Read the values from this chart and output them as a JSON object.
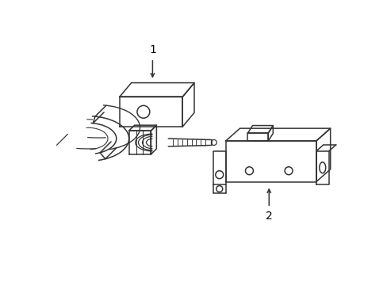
{
  "background_color": "#ffffff",
  "line_color": "#333333",
  "line_width": 1.1,
  "label1": "1",
  "label2": "2",
  "figsize": [
    4.89,
    3.6
  ],
  "dpi": 100
}
